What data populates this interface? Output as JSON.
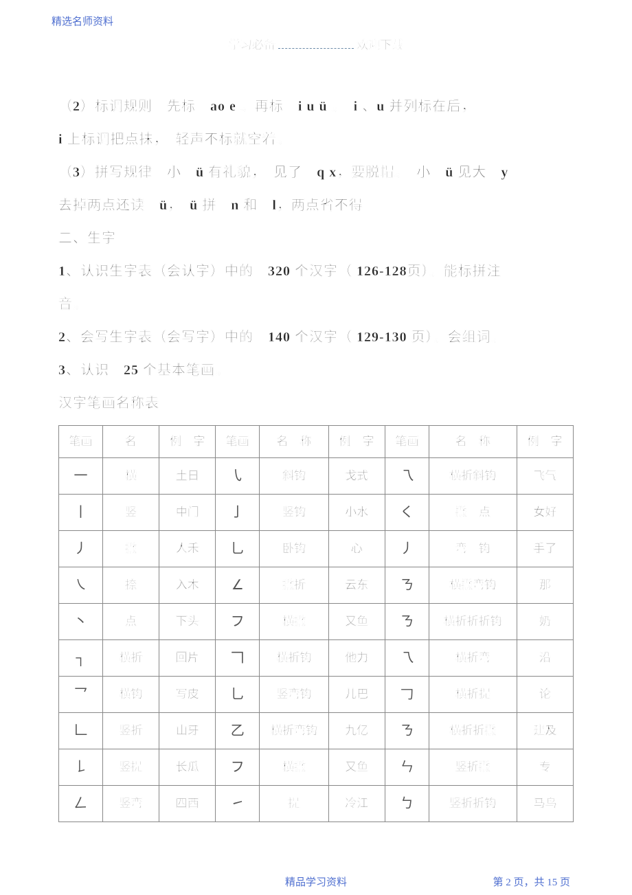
{
  "header_tag": "精选名师资料",
  "top_title_left": "学习必备",
  "top_title_right": "欢迎下载",
  "paragraphs": [
    "（2）标调规则　先标　ao e  。再标　i u  ü 。　i 、u 并列标在后，",
    "i  上标调把点抹，　轻声不标就空着。",
    "（3）拼写规律　小　ü  有礼貌，　见了　q x，要脱帽。　小　ü  见大　y",
    "去掉两点还读　ü，　ü 拼　n  和　l，两点省不得",
    "二、生字",
    "1、认识生字表（会认字）中的　320  个汉字（ 126-128页）。能标拼注",
    "音。",
    "2、会写生字表（会写字）中的　140  个汉字（ 129-130  页）。会组词。",
    "3、认识　25  个基本笔画。",
    "汉字笔画名称表"
  ],
  "table": {
    "headers": [
      "笔画",
      "名",
      "例　字",
      "笔画",
      "名　称",
      "例　字",
      "笔画",
      "名　称",
      "例　字"
    ],
    "rows": [
      [
        "一",
        "横",
        "土日",
        "㇂",
        "斜钩",
        "戈式",
        "乁",
        "横折斜钩",
        "飞气"
      ],
      [
        "丨",
        "竖",
        "中门",
        "亅",
        "竖钩",
        "小水",
        "く",
        "撇　点",
        "女好"
      ],
      [
        "丿",
        "撇",
        "人禾",
        "乚",
        "卧钩",
        "心",
        "丿",
        "弯　钩",
        "手了"
      ],
      [
        "㇏",
        "捺",
        "入木",
        "∠",
        "撇折",
        "云东",
        "ㄋ",
        "横撇弯钩",
        "那"
      ],
      [
        "丶",
        "点",
        "下头",
        "フ",
        "横撇",
        "又鱼",
        "ㄋ",
        "横折折折钩",
        "奶"
      ],
      [
        "┐",
        "横折",
        "回片",
        "𠃍",
        "横折钩",
        "他力",
        "乁",
        "横折弯",
        "沿"
      ],
      [
        "乛",
        "横钩",
        "写皮",
        "乚",
        "竖弯钩",
        "儿巴",
        "𠃌",
        "横折提",
        "论"
      ],
      [
        "𠃊",
        "竖折",
        "山牙",
        "乙",
        "横折弯钩",
        "九亿",
        "ㄋ",
        "横折折撇",
        "建及"
      ],
      [
        "𠄌",
        "竖提",
        "长瓜",
        "フ",
        "横撇",
        "又鱼",
        "ㄣ",
        "竖折撇",
        "专"
      ],
      [
        "𠃋",
        "竖弯",
        "四西",
        "㇀",
        "提",
        "冷江",
        "ㄅ",
        "竖折折钩",
        "马鸟"
      ]
    ]
  },
  "footer_center": "精品学习资料",
  "footer_right": "第 2 页，共 15 页"
}
